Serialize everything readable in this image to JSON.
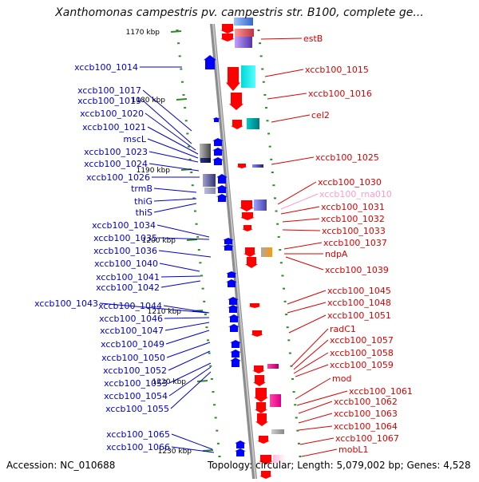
{
  "title": "Xanthomonas campestris pv. campestris str. B100, complete ge...",
  "footer": {
    "accession_label": "Accession:",
    "accession": "NC_010688",
    "topology": "Topology: circular; Length: 5,079,002 bp; Genes: 4,528"
  },
  "colors": {
    "left_label": "#0000cc",
    "right_label": "#dd0000",
    "rna_label": "#ff99cc",
    "tick": "#2e8b22",
    "axis": "#999999",
    "forward_gene": "#0000ff",
    "reverse_gene": "#ff0000"
  },
  "ruler": [
    "1170 kbp",
    "1180 kbp",
    "1190 kbp",
    "1200 kbp",
    "1210 kbp",
    "1220 kbp",
    "1230 kbp"
  ],
  "left_labels": [
    "xccb100_1014",
    "xccb100_1017",
    "xccb100_1019",
    "xccb100_1020",
    "xccb100_1021",
    "mscL",
    "xccb100_1023",
    "xccb100_1024",
    "xccb100_1026",
    "trmB",
    "thiG",
    "thiS",
    "xccb100_1034",
    "xccb100_1035",
    "xccb100_1036",
    "xccb100_1040",
    "xccb100_1041",
    "xccb100_1042",
    "xccb100_1043",
    "xccb100_1044",
    "xccb100_1046",
    "xccb100_1047",
    "xccb100_1049",
    "xccb100_1050",
    "xccb100_1052",
    "xccb100_1053",
    "xccb100_1054",
    "xccb100_1055",
    "xccb100_1065",
    "xccb100_1066"
  ],
  "right_labels": [
    "estB",
    "xccb100_1015",
    "xccb100_1016",
    "cel2",
    "xccb100_1025",
    "xccb100_1030",
    "xccb100_rna010",
    "xccb100_1031",
    "xccb100_1032",
    "xccb100_1033",
    "xccb100_1037",
    "ndpA",
    "xccb100_1039",
    "xccb100_1045",
    "xccb100_1048",
    "xccb100_1051",
    "radC1",
    "xccb100_1057",
    "xccb100_1058",
    "xccb100_1059",
    "mod",
    "xccb100_1061",
    "xccb100_1062",
    "xccb100_1063",
    "xccb100_1064",
    "xccb100_1067",
    "mobL1"
  ]
}
